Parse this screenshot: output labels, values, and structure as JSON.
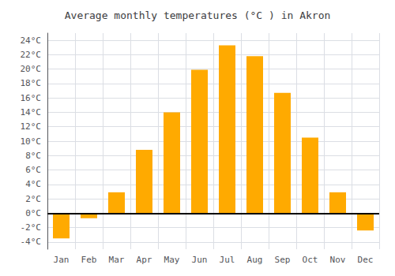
{
  "chart_data": {
    "type": "bar",
    "title": "Average monthly temperatures (°C ) in Akron",
    "categories": [
      "Jan",
      "Feb",
      "Mar",
      "Apr",
      "May",
      "Jun",
      "Jul",
      "Aug",
      "Sep",
      "Oct",
      "Nov",
      "Dec"
    ],
    "values": [
      -3.5,
      -0.7,
      2.9,
      8.8,
      14.0,
      19.9,
      23.3,
      21.8,
      16.7,
      10.5,
      2.9,
      -2.4
    ],
    "color": "#FFAA00",
    "ylim": [
      -5,
      25
    ],
    "yticks": [
      {
        "value": -4,
        "label": "-4°C"
      },
      {
        "value": -2,
        "label": "-2°C"
      },
      {
        "value": 0,
        "label": "0°C"
      },
      {
        "value": 2,
        "label": "2°C"
      },
      {
        "value": 4,
        "label": "4°C"
      },
      {
        "value": 6,
        "label": "6°C"
      },
      {
        "value": 8,
        "label": "8°C"
      },
      {
        "value": 10,
        "label": "10°C"
      },
      {
        "value": 12,
        "label": "12°C"
      },
      {
        "value": 14,
        "label": "14°C"
      },
      {
        "value": 16,
        "label": "16°C"
      },
      {
        "value": 18,
        "label": "18°C"
      },
      {
        "value": 20,
        "label": "20°C"
      },
      {
        "value": 22,
        "label": "22°C"
      },
      {
        "value": 24,
        "label": "24°C"
      }
    ],
    "grid": true
  }
}
